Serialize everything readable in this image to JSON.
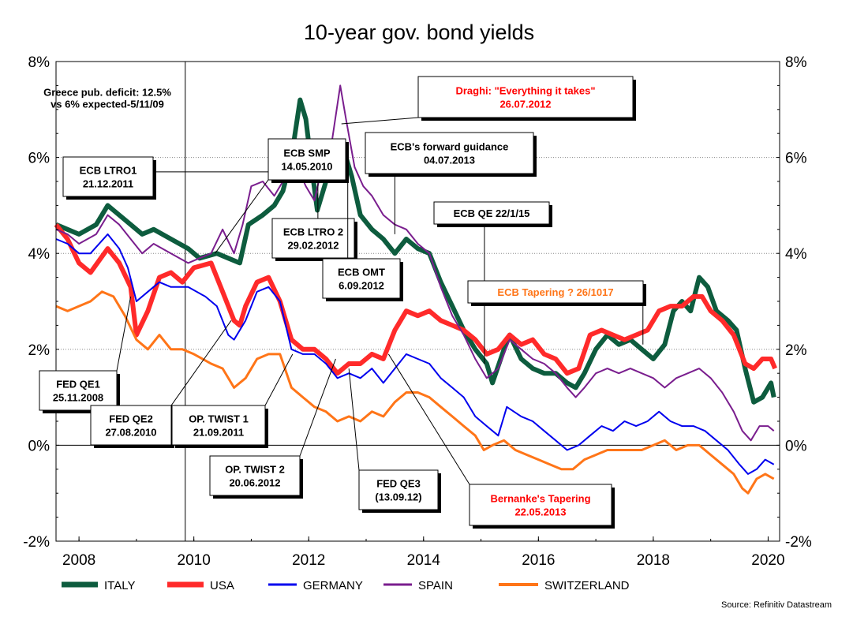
{
  "chart_data": {
    "type": "line",
    "title": "10-year gov. bond yields",
    "source": "Source: Refinitiv Datastream",
    "x_ticks": [
      "2008",
      "2010",
      "2012",
      "2014",
      "2016",
      "2018",
      "2020"
    ],
    "y_ticks": [
      "-2%",
      "0%",
      "2%",
      "4%",
      "6%",
      "8%"
    ],
    "xlim": [
      2007.6,
      2020.2
    ],
    "ylim": [
      -2,
      8
    ],
    "grid": "horizontal dotted",
    "legend_position": "bottom",
    "series": [
      {
        "name": "ITALY",
        "color": "#0d5c3e",
        "x": [
          2007.6,
          2007.8,
          2008.0,
          2008.3,
          2008.5,
          2008.6,
          2008.9,
          2009.1,
          2009.3,
          2009.6,
          2009.9,
          2010.1,
          2010.4,
          2010.6,
          2010.8,
          2010.95,
          2011.2,
          2011.4,
          2011.55,
          2011.7,
          2011.85,
          2011.95,
          2012.05,
          2012.15,
          2012.3,
          2012.45,
          2012.6,
          2012.75,
          2012.9,
          2013.1,
          2013.3,
          2013.5,
          2013.7,
          2013.9,
          2014.1,
          2014.3,
          2014.5,
          2014.7,
          2014.9,
          2015.1,
          2015.2,
          2015.4,
          2015.5,
          2015.7,
          2015.9,
          2016.1,
          2016.3,
          2016.5,
          2016.65,
          2016.8,
          2017.0,
          2017.2,
          2017.4,
          2017.6,
          2017.8,
          2018.0,
          2018.2,
          2018.35,
          2018.5,
          2018.65,
          2018.8,
          2018.95,
          2019.1,
          2019.3,
          2019.45,
          2019.6,
          2019.75,
          2019.9,
          2020.05,
          2020.1
        ],
        "values": [
          4.6,
          4.5,
          4.4,
          4.6,
          5.0,
          4.9,
          4.6,
          4.4,
          4.5,
          4.3,
          4.1,
          3.9,
          4.0,
          3.9,
          3.8,
          4.6,
          4.8,
          5.0,
          5.3,
          6.0,
          7.2,
          6.8,
          5.8,
          4.9,
          5.5,
          5.8,
          6.2,
          5.6,
          4.8,
          4.5,
          4.3,
          4.0,
          4.3,
          4.1,
          4.0,
          3.4,
          2.9,
          2.4,
          2.0,
          1.7,
          1.3,
          2.0,
          2.3,
          1.8,
          1.6,
          1.5,
          1.5,
          1.3,
          1.2,
          1.5,
          2.0,
          2.3,
          2.1,
          2.2,
          2.0,
          1.8,
          2.1,
          2.8,
          3.0,
          2.8,
          3.5,
          3.3,
          2.8,
          2.6,
          2.4,
          1.6,
          0.9,
          1.0,
          1.3,
          1.0
        ]
      },
      {
        "name": "USA",
        "color": "#ff2a2a",
        "x": [
          2007.6,
          2007.8,
          2008.0,
          2008.2,
          2008.5,
          2008.7,
          2008.9,
          2009.0,
          2009.2,
          2009.4,
          2009.6,
          2009.8,
          2010.0,
          2010.3,
          2010.5,
          2010.7,
          2010.8,
          2010.9,
          2011.1,
          2011.3,
          2011.5,
          2011.7,
          2011.9,
          2012.1,
          2012.3,
          2012.5,
          2012.7,
          2012.9,
          2013.1,
          2013.3,
          2013.5,
          2013.7,
          2013.9,
          2014.1,
          2014.3,
          2014.5,
          2014.7,
          2014.9,
          2015.1,
          2015.3,
          2015.5,
          2015.7,
          2015.9,
          2016.1,
          2016.3,
          2016.5,
          2016.7,
          2016.9,
          2017.1,
          2017.3,
          2017.5,
          2017.7,
          2017.9,
          2018.1,
          2018.3,
          2018.5,
          2018.7,
          2018.85,
          2019.0,
          2019.2,
          2019.4,
          2019.6,
          2019.75,
          2019.9,
          2020.05,
          2020.12
        ],
        "values": [
          4.6,
          4.3,
          3.8,
          3.6,
          4.1,
          3.8,
          3.3,
          2.3,
          2.8,
          3.5,
          3.6,
          3.4,
          3.7,
          3.8,
          3.2,
          2.6,
          2.5,
          2.9,
          3.4,
          3.5,
          3.0,
          2.2,
          2.0,
          2.0,
          1.8,
          1.5,
          1.7,
          1.7,
          1.9,
          1.8,
          2.4,
          2.8,
          2.7,
          2.8,
          2.6,
          2.5,
          2.4,
          2.2,
          1.9,
          2.0,
          2.3,
          2.1,
          2.2,
          1.9,
          1.8,
          1.5,
          1.6,
          2.3,
          2.4,
          2.3,
          2.2,
          2.3,
          2.4,
          2.8,
          2.9,
          2.9,
          3.1,
          3.1,
          2.8,
          2.6,
          2.3,
          1.7,
          1.6,
          1.8,
          1.8,
          1.6
        ]
      },
      {
        "name": "GERMANY",
        "color": "#0000ee",
        "x": [
          2007.6,
          2007.8,
          2008.0,
          2008.2,
          2008.5,
          2008.7,
          2008.85,
          2009.0,
          2009.2,
          2009.4,
          2009.6,
          2009.9,
          2010.2,
          2010.4,
          2010.6,
          2010.7,
          2010.9,
          2011.1,
          2011.3,
          2011.5,
          2011.7,
          2011.9,
          2012.1,
          2012.3,
          2012.5,
          2012.7,
          2012.9,
          2013.1,
          2013.3,
          2013.5,
          2013.7,
          2013.9,
          2014.1,
          2014.3,
          2014.5,
          2014.7,
          2014.9,
          2015.1,
          2015.3,
          2015.45,
          2015.7,
          2015.9,
          2016.1,
          2016.3,
          2016.5,
          2016.7,
          2016.9,
          2017.1,
          2017.3,
          2017.5,
          2017.7,
          2017.9,
          2018.1,
          2018.3,
          2018.5,
          2018.7,
          2018.9,
          2019.1,
          2019.3,
          2019.5,
          2019.65,
          2019.8,
          2019.95,
          2020.1
        ],
        "values": [
          4.3,
          4.2,
          4.0,
          4.0,
          4.4,
          4.1,
          3.7,
          3.0,
          3.2,
          3.4,
          3.3,
          3.3,
          3.1,
          2.9,
          2.3,
          2.2,
          2.6,
          3.2,
          3.3,
          3.0,
          2.0,
          1.9,
          1.9,
          1.7,
          1.4,
          1.5,
          1.4,
          1.6,
          1.3,
          1.6,
          1.9,
          1.8,
          1.7,
          1.4,
          1.2,
          1.0,
          0.6,
          0.4,
          0.2,
          0.8,
          0.6,
          0.5,
          0.3,
          0.1,
          -0.1,
          0.0,
          0.2,
          0.4,
          0.3,
          0.5,
          0.4,
          0.5,
          0.7,
          0.5,
          0.4,
          0.4,
          0.3,
          0.1,
          -0.1,
          -0.4,
          -0.6,
          -0.5,
          -0.3,
          -0.4
        ]
      },
      {
        "name": "SPAIN",
        "color": "#7a1e8e",
        "x": [
          2007.6,
          2007.8,
          2008.0,
          2008.3,
          2008.5,
          2008.7,
          2008.9,
          2009.1,
          2009.3,
          2009.6,
          2009.9,
          2010.1,
          2010.3,
          2010.5,
          2010.7,
          2010.85,
          2011.0,
          2011.2,
          2011.4,
          2011.6,
          2011.8,
          2011.95,
          2012.1,
          2012.25,
          2012.4,
          2012.55,
          2012.65,
          2012.8,
          2012.95,
          2013.1,
          2013.3,
          2013.5,
          2013.7,
          2013.9,
          2014.1,
          2014.3,
          2014.5,
          2014.7,
          2014.9,
          2015.1,
          2015.3,
          2015.5,
          2015.7,
          2015.9,
          2016.1,
          2016.3,
          2016.5,
          2016.65,
          2016.8,
          2017.0,
          2017.2,
          2017.4,
          2017.6,
          2017.8,
          2018.0,
          2018.2,
          2018.4,
          2018.6,
          2018.8,
          2019.0,
          2019.2,
          2019.4,
          2019.55,
          2019.7,
          2019.85,
          2020.0,
          2020.1
        ],
        "values": [
          4.5,
          4.4,
          4.2,
          4.4,
          4.8,
          4.6,
          4.3,
          4.0,
          4.2,
          4.0,
          3.8,
          3.9,
          4.0,
          4.5,
          4.0,
          4.6,
          5.4,
          5.5,
          5.2,
          5.6,
          5.8,
          5.4,
          5.1,
          5.9,
          6.3,
          7.5,
          6.8,
          5.8,
          5.4,
          5.2,
          4.8,
          4.6,
          4.5,
          4.2,
          4.0,
          3.3,
          2.7,
          2.3,
          1.8,
          1.4,
          1.6,
          2.2,
          2.0,
          1.8,
          1.7,
          1.5,
          1.2,
          1.0,
          1.2,
          1.5,
          1.6,
          1.5,
          1.6,
          1.5,
          1.4,
          1.2,
          1.4,
          1.5,
          1.6,
          1.4,
          1.1,
          0.7,
          0.3,
          0.1,
          0.4,
          0.4,
          0.3
        ]
      },
      {
        "name": "SWITZERLAND",
        "color": "#ff7518",
        "x": [
          2007.6,
          2007.8,
          2008.0,
          2008.2,
          2008.4,
          2008.6,
          2008.8,
          2009.0,
          2009.2,
          2009.4,
          2009.6,
          2009.8,
          2010.0,
          2010.3,
          2010.5,
          2010.7,
          2010.9,
          2011.1,
          2011.3,
          2011.5,
          2011.7,
          2011.9,
          2012.1,
          2012.3,
          2012.5,
          2012.7,
          2012.9,
          2013.1,
          2013.3,
          2013.5,
          2013.7,
          2013.9,
          2014.1,
          2014.3,
          2014.5,
          2014.7,
          2014.9,
          2015.05,
          2015.2,
          2015.4,
          2015.6,
          2015.8,
          2016.0,
          2016.2,
          2016.4,
          2016.6,
          2016.8,
          2017.0,
          2017.2,
          2017.4,
          2017.6,
          2017.8,
          2018.0,
          2018.2,
          2018.4,
          2018.6,
          2018.8,
          2019.0,
          2019.2,
          2019.4,
          2019.55,
          2019.65,
          2019.8,
          2019.95,
          2020.1
        ],
        "values": [
          2.9,
          2.8,
          2.9,
          3.0,
          3.2,
          3.1,
          2.7,
          2.2,
          2.0,
          2.3,
          2.0,
          2.0,
          1.9,
          1.7,
          1.6,
          1.2,
          1.4,
          1.8,
          1.9,
          1.9,
          1.2,
          1.0,
          0.8,
          0.7,
          0.5,
          0.6,
          0.5,
          0.7,
          0.6,
          0.9,
          1.1,
          1.1,
          1.0,
          0.8,
          0.6,
          0.4,
          0.2,
          -0.1,
          0.0,
          0.1,
          -0.1,
          -0.2,
          -0.3,
          -0.4,
          -0.5,
          -0.5,
          -0.3,
          -0.2,
          -0.1,
          -0.1,
          -0.1,
          -0.1,
          0.0,
          0.1,
          -0.1,
          0.0,
          0.0,
          -0.2,
          -0.4,
          -0.6,
          -0.9,
          -1.0,
          -0.7,
          -0.6,
          -0.7
        ]
      }
    ],
    "vertical_marker": {
      "x": 2009.85
    },
    "annotations": [
      {
        "name": "greece",
        "lines": [
          "Greece pub. deficit: 12.5%",
          "vs 6% expected-5/11/09"
        ],
        "color": "#000000",
        "boxed": false
      },
      {
        "name": "draghi",
        "lines": [
          "Draghi: \"Everything it takes\"",
          "26.07.2012"
        ],
        "color": "#ff0000",
        "boxed": true,
        "target": [
          2012.57,
          6.7
        ]
      },
      {
        "name": "ecb-ltro1",
        "lines": [
          "ECB LTRO1",
          "21.12.2011"
        ],
        "color": "#000000",
        "boxed": true,
        "target": [
          2011.97,
          5.7
        ]
      },
      {
        "name": "ecb-smp",
        "lines": [
          "ECB SMP",
          "14.05.2010"
        ],
        "color": "#000000",
        "boxed": true,
        "target": [
          2010.37,
          4.0
        ]
      },
      {
        "name": "ecb-forward",
        "lines": [
          "ECB's forward guidance",
          "04.07.2013"
        ],
        "color": "#000000",
        "boxed": true,
        "target": [
          2013.5,
          4.4
        ]
      },
      {
        "name": "ecb-ltro2",
        "lines": [
          "ECB LTRO 2",
          "29.02.2012"
        ],
        "color": "#000000",
        "boxed": true,
        "target": [
          2012.16,
          5.5
        ]
      },
      {
        "name": "ecb-omt",
        "lines": [
          "ECB OMT",
          "6.09.2012"
        ],
        "color": "#000000",
        "boxed": true,
        "target": [
          2012.68,
          5.8
        ]
      },
      {
        "name": "ecb-qe",
        "lines": [
          "ECB QE 22/1/15"
        ],
        "color": "#000000",
        "boxed": true,
        "target": [
          2015.06,
          1.7
        ]
      },
      {
        "name": "ecb-tapering",
        "lines": [
          "ECB Tapering ? 26/1017"
        ],
        "color": "#ff7518",
        "boxed": true,
        "target": [
          2017.82,
          2.1
        ]
      },
      {
        "name": "fed-qe1",
        "lines": [
          "FED QE1",
          "25.11.2008"
        ],
        "color": "#000000",
        "boxed": true,
        "target": [
          2008.9,
          3.1
        ]
      },
      {
        "name": "fed-qe2",
        "lines": [
          "FED QE2",
          "27.08.2010"
        ],
        "color": "#000000",
        "boxed": true,
        "target": [
          2010.65,
          2.6
        ]
      },
      {
        "name": "op-twist1",
        "lines": [
          "OP. TWIST 1",
          "21.09.2011"
        ],
        "color": "#000000",
        "boxed": true,
        "target": [
          2011.72,
          1.9
        ]
      },
      {
        "name": "op-twist2",
        "lines": [
          "OP. TWIST 2",
          "20.06.2012"
        ],
        "color": "#000000",
        "boxed": true,
        "target": [
          2012.47,
          1.8
        ]
      },
      {
        "name": "fed-qe3",
        "lines": [
          "FED QE3",
          "(13.09.12)"
        ],
        "color": "#000000",
        "boxed": true,
        "target": [
          2012.7,
          1.6
        ]
      },
      {
        "name": "bernanke",
        "lines": [
          "Bernanke's Tapering",
          "22.05.2013"
        ],
        "color": "#ff0000",
        "boxed": true,
        "target": [
          2013.39,
          1.9
        ]
      }
    ]
  }
}
